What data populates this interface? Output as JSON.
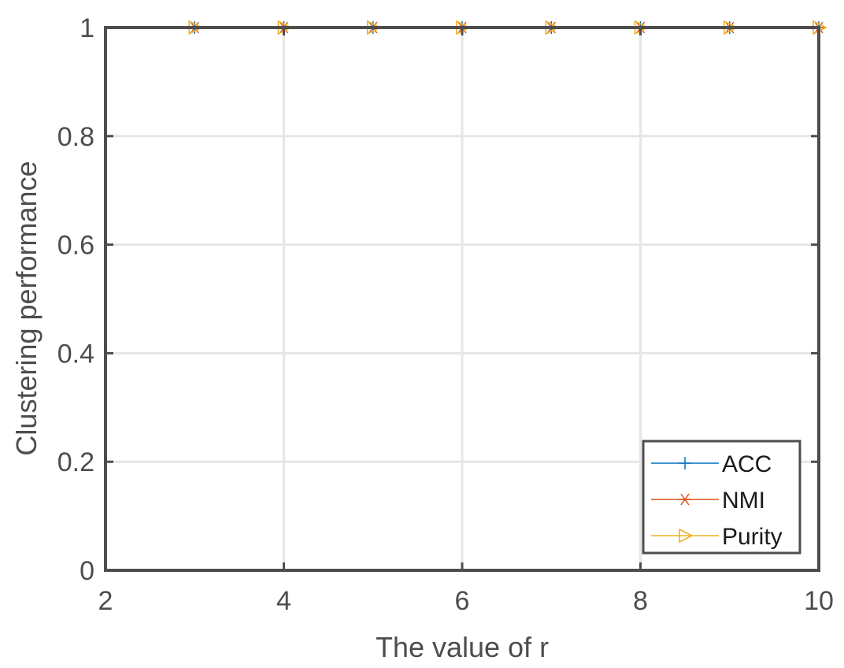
{
  "chart_data": {
    "type": "line",
    "xlabel": "The value of r",
    "ylabel": "Clustering performance",
    "xlim": [
      2,
      10
    ],
    "ylim": [
      0,
      1
    ],
    "xticks": [
      "2",
      "4",
      "6",
      "8",
      "10"
    ],
    "yticks": [
      "0",
      "0.2",
      "0.4",
      "0.6",
      "0.8",
      "1"
    ],
    "grid": true,
    "legend_position": "bottom-right",
    "x": [
      3,
      4,
      5,
      6,
      7,
      8,
      9,
      10
    ],
    "series": [
      {
        "name": "ACC",
        "values": [
          1,
          1,
          1,
          1,
          1,
          1,
          1,
          1
        ],
        "color": "#0072BD",
        "marker": "plus"
      },
      {
        "name": "NMI",
        "values": [
          1,
          1,
          1,
          1,
          1,
          1,
          1,
          1
        ],
        "color": "#D95319",
        "marker": "asterisk"
      },
      {
        "name": "Purity",
        "values": [
          1,
          1,
          1,
          1,
          1,
          1,
          1,
          1
        ],
        "color": "#EDB120",
        "marker": "triangle-right"
      }
    ],
    "overlay_line_color": "#7E2F8E"
  }
}
